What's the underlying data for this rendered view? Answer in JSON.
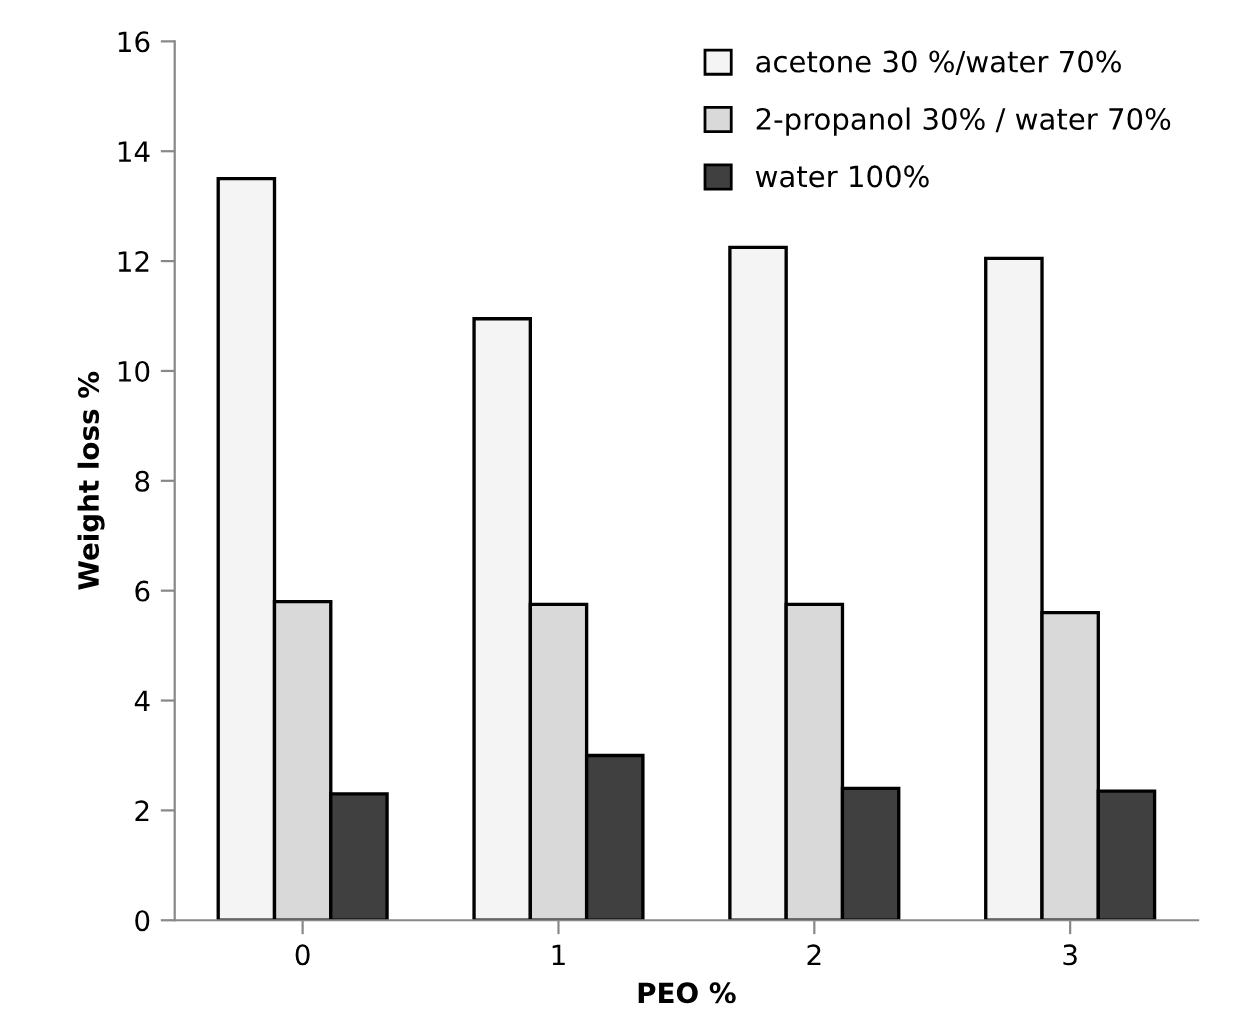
{
  "chart_data": {
    "type": "bar",
    "xlabel": "PEO %",
    "ylabel": "Weight loss %",
    "categories": [
      "0",
      "1",
      "2",
      "3"
    ],
    "series": [
      {
        "name": "acetone 30 %/water 70%",
        "color": "#f4f4f4",
        "values": [
          13.5,
          10.95,
          12.25,
          12.05
        ]
      },
      {
        "name": "2-propanol 30% / water 70%",
        "color": "#d9d9d9",
        "values": [
          5.8,
          5.75,
          5.75,
          5.6
        ]
      },
      {
        "name": "water 100%",
        "color": "#404040",
        "values": [
          2.3,
          3.0,
          2.4,
          2.35
        ]
      }
    ],
    "ylim": [
      0,
      16
    ],
    "yticks": [
      0,
      2,
      4,
      6,
      8,
      10,
      12,
      14,
      16
    ],
    "grid": false,
    "legend": "top right"
  }
}
